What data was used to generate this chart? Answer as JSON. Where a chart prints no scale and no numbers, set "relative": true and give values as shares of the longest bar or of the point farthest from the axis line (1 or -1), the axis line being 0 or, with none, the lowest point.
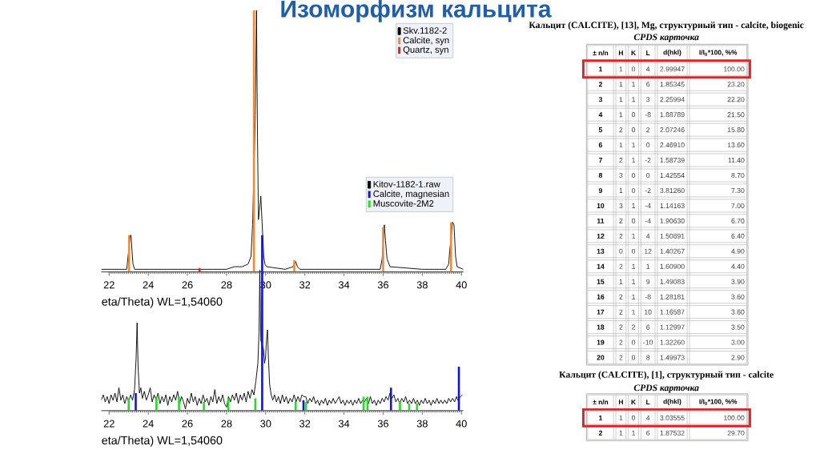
{
  "chart_data": [
    {
      "type": "line",
      "title": "Изоморфизм кальцита",
      "relative": true,
      "xlabel": "eta/Theta) WL=1,54060",
      "xlim": [
        21.6,
        40.1
      ],
      "xticks": [
        22,
        24,
        26,
        28,
        30,
        32,
        34,
        36,
        38,
        40
      ],
      "legend": "top right",
      "series": [
        {
          "name": "Skv.1182-2",
          "color": "#000000",
          "x": [
            21.6,
            22.9,
            23.08,
            23.12,
            23.17,
            23.22,
            23.3,
            24.0,
            25.0,
            26.0,
            27.0,
            27.5,
            28.0,
            28.4,
            28.8,
            29.1,
            29.25,
            29.33,
            29.47,
            29.53,
            29.58,
            29.63,
            29.7,
            29.75,
            29.9,
            29.96,
            30.05,
            31.0,
            31.4,
            31.53,
            31.62,
            31.75,
            33.0,
            35.0,
            35.85,
            35.95,
            36.06,
            36.12,
            36.2,
            36.35,
            38.0,
            39.2,
            39.35,
            39.4,
            39.55,
            39.62,
            39.7,
            39.78,
            40.1
          ],
          "values": [
            0.01,
            0.01,
            0.14,
            0.14,
            0.08,
            0.03,
            0.01,
            0.01,
            0.01,
            0.01,
            0.01,
            0.01,
            0.01,
            0.02,
            0.02,
            0.03,
            0.06,
            0.18,
            0.6,
            1.0,
            0.52,
            0.2,
            0.25,
            0.29,
            0.06,
            0.03,
            0.02,
            0.01,
            0.02,
            0.04,
            0.02,
            0.01,
            0.01,
            0.01,
            0.01,
            0.05,
            0.18,
            0.12,
            0.05,
            0.02,
            0.01,
            0.01,
            0.03,
            0.08,
            0.19,
            0.18,
            0.06,
            0.02,
            0.01
          ]
        },
        {
          "name": "Calcite, syn",
          "type": "bar",
          "color": "#f08a3c",
          "x": [
            23.02,
            29.4,
            31.46,
            36.0,
            39.47
          ],
          "values": [
            0.14,
            1.0,
            0.045,
            0.17,
            0.19
          ]
        },
        {
          "name": "Quartz, syn",
          "type": "bar",
          "color": "#e82020",
          "x": [
            26.62
          ],
          "values": [
            0.015
          ]
        }
      ]
    },
    {
      "type": "line",
      "relative": true,
      "xlabel": "eta/Theta) WL=1,54060",
      "xlim": [
        21.6,
        40.1
      ],
      "xticks": [
        22,
        24,
        26,
        28,
        30,
        32,
        34,
        36,
        38,
        40
      ],
      "legend": "top right",
      "series": [
        {
          "name": "Kitov-1182-1.raw",
          "color": "#000000",
          "x": [
            21.6,
            21.7,
            21.8,
            21.9,
            22.0,
            22.1,
            22.2,
            22.3,
            22.4,
            22.5,
            22.6,
            22.7,
            22.8,
            22.9,
            23.0,
            23.1,
            23.2,
            23.3,
            23.38,
            23.43,
            23.48,
            23.55,
            23.62,
            23.7,
            23.8,
            23.9,
            24.0,
            24.1,
            24.2,
            24.3,
            24.4,
            24.5,
            24.6,
            24.7,
            24.8,
            24.9,
            25.0,
            25.1,
            25.2,
            25.3,
            25.4,
            25.5,
            25.6,
            25.7,
            25.8,
            25.9,
            26.0,
            26.1,
            26.2,
            26.3,
            26.4,
            26.5,
            26.6,
            26.7,
            26.8,
            26.9,
            27.0,
            27.1,
            27.2,
            27.3,
            27.4,
            27.5,
            27.6,
            27.7,
            27.8,
            27.9,
            28.0,
            28.1,
            28.2,
            28.3,
            28.4,
            28.5,
            28.6,
            28.7,
            28.8,
            28.9,
            29.0,
            29.1,
            29.2,
            29.3,
            29.4,
            29.5,
            29.6,
            29.66,
            29.7,
            29.75,
            29.89,
            29.94,
            29.99,
            30.04,
            30.09,
            30.14,
            30.2,
            30.28,
            30.36,
            30.45,
            30.55,
            30.65,
            30.75,
            30.85,
            30.95,
            31.05,
            31.15,
            31.25,
            31.35,
            31.45,
            31.55,
            31.65,
            31.75,
            31.85,
            31.95,
            32.05,
            32.15,
            32.25,
            32.35,
            32.45,
            32.55,
            32.65,
            32.75,
            32.85,
            32.95,
            33.05,
            33.15,
            33.25,
            33.35,
            33.45,
            33.55,
            33.65,
            33.75,
            33.85,
            33.95,
            34.05,
            34.15,
            34.25,
            34.35,
            34.45,
            34.55,
            34.65,
            34.75,
            34.85,
            34.95,
            35.05,
            35.15,
            35.25,
            35.35,
            35.45,
            35.55,
            35.65,
            35.75,
            35.85,
            35.95,
            36.05,
            36.15,
            36.25,
            36.35,
            36.45,
            36.55,
            36.65,
            36.75,
            36.85,
            36.95,
            37.05,
            37.15,
            37.25,
            37.35,
            37.45,
            37.55,
            37.65,
            37.75,
            37.85,
            37.95,
            38.05,
            38.15,
            38.25,
            38.35,
            38.45,
            38.55,
            38.65,
            38.75,
            38.85,
            38.95,
            39.05,
            39.15,
            39.25,
            39.35,
            39.45,
            39.55,
            39.65,
            39.75,
            39.81,
            39.95,
            40.05
          ],
          "values": [
            0.06,
            0.09,
            0.05,
            0.08,
            0.04,
            0.09,
            0.06,
            0.1,
            0.05,
            0.13,
            0.06,
            0.09,
            0.04,
            0.08,
            0.05,
            0.09,
            0.06,
            0.12,
            0.3,
            0.5,
            0.25,
            0.1,
            0.13,
            0.07,
            0.11,
            0.06,
            0.09,
            0.13,
            0.05,
            0.09,
            0.06,
            0.1,
            0.04,
            0.08,
            0.05,
            0.09,
            0.03,
            0.08,
            0.05,
            0.09,
            0.06,
            0.11,
            0.04,
            0.08,
            0.05,
            0.01,
            0.07,
            0.04,
            0.1,
            0.05,
            0.08,
            0.03,
            0.07,
            0.04,
            0.09,
            0.05,
            0.07,
            0.03,
            0.08,
            0.05,
            0.12,
            0.04,
            0.08,
            0.05,
            0.09,
            0.04,
            0.02,
            0.08,
            0.05,
            0.09,
            0.06,
            0.1,
            0.04,
            0.09,
            0.06,
            0.1,
            0.05,
            0.11,
            0.07,
            0.12,
            0.09,
            0.17,
            0.27,
            0.45,
            0.8,
            0.4,
            0.35,
            0.27,
            0.3,
            0.4,
            0.46,
            0.3,
            0.15,
            0.09,
            0.06,
            0.09,
            0.05,
            0.08,
            0.04,
            0.09,
            0.05,
            0.08,
            0.04,
            0.07,
            0.05,
            0.09,
            0.05,
            0.08,
            0.05,
            0.09,
            0.08,
            0.08,
            0.04,
            0.07,
            0.05,
            0.08,
            0.04,
            0.06,
            0.03,
            0.06,
            0.04,
            0.07,
            0.03,
            0.06,
            0.04,
            0.07,
            0.04,
            0.06,
            0.08,
            0.04,
            0.06,
            0.03,
            0.06,
            0.04,
            0.06,
            0.03,
            0.06,
            0.04,
            0.07,
            0.04,
            0.06,
            0.05,
            0.07,
            0.04,
            0.08,
            0.04,
            0.06,
            0.03,
            0.06,
            0.04,
            0.07,
            0.05,
            0.08,
            0.06,
            0.1,
            0.07,
            0.09,
            0.05,
            0.07,
            0.04,
            0.07,
            0.05,
            0.08,
            0.04,
            0.06,
            0.04,
            0.07,
            0.04,
            0.06,
            0.03,
            0.06,
            0.04,
            0.07,
            0.04,
            0.06,
            0.03,
            0.06,
            0.04,
            0.07,
            0.04,
            0.06,
            0.04,
            0.06,
            0.04,
            0.07,
            0.05,
            0.07,
            0.05,
            0.08,
            0.06,
            0.08,
            0.09
          ]
        },
        {
          "name": "Calcite, magnesian",
          "type": "bar",
          "color": "#1414d2",
          "x": [
            23.36,
            29.82,
            31.93,
            36.4,
            39.87
          ],
          "values": [
            0.1,
            1.0,
            0.06,
            0.13,
            0.25
          ]
        },
        {
          "name": "Muscovite-2M2",
          "type": "bar",
          "color": "#22dd22",
          "x": [
            23.0,
            24.42,
            25.57,
            26.84,
            28.09,
            29.47,
            31.53,
            32.05,
            35.0,
            35.2,
            36.86,
            37.33,
            37.73
          ],
          "values": [
            0.07,
            0.08,
            0.08,
            0.05,
            0.07,
            0.07,
            0.05,
            0.05,
            0.08,
            0.08,
            0.05,
            0.04,
            0.04
          ]
        }
      ]
    },
    {
      "type": "heatmap",
      "title": "Кальцит (CALCITE), [13], Mg, структурный тип - calcite, biogenic",
      "subtitle": "CPDS карточка",
      "ylabel": "± n/n",
      "categories": [
        "H",
        "K",
        "L",
        "d(hkl)",
        "I/I$_{0}$*100, %%"
      ],
      "y_categories": [
        "1",
        "2",
        "3",
        "4",
        "5",
        "6",
        "7",
        "8",
        "9",
        "10",
        "11",
        "12",
        "13",
        "14",
        "15",
        "16",
        "17",
        "18",
        "19",
        "20"
      ],
      "cells": [
        [
          null,
          null,
          null,
          null,
          null
        ],
        [
          null,
          null,
          null,
          null,
          null
        ],
        [
          null,
          null,
          null,
          null,
          null
        ],
        [
          null,
          null,
          null,
          null,
          null
        ],
        [
          null,
          null,
          null,
          null,
          null
        ],
        [
          null,
          null,
          null,
          null,
          null
        ],
        [
          null,
          null,
          null,
          null,
          null
        ],
        [
          null,
          null,
          null,
          null,
          null
        ],
        [
          null,
          null,
          null,
          null,
          null
        ],
        [
          null,
          null,
          null,
          null,
          null
        ],
        [
          null,
          null,
          null,
          null,
          null
        ],
        [
          null,
          null,
          null,
          null,
          null
        ],
        [
          null,
          null,
          null,
          null,
          null
        ],
        [
          null,
          null,
          null,
          null,
          null
        ],
        [
          null,
          null,
          null,
          null,
          null
        ],
        [
          null,
          null,
          null,
          null,
          null
        ],
        [
          null,
          null,
          null,
          null,
          null
        ],
        [
          null,
          null,
          null,
          null,
          null
        ],
        [
          null,
          null,
          null,
          null,
          null
        ],
        [
          null,
          null,
          null,
          null,
          null
        ]
      ],
      "cell_labels": [
        [
          "1",
          "0",
          "4",
          "2.99947",
          "100.00"
        ],
        [
          "1",
          "1",
          "6",
          "1.85345",
          "23.20"
        ],
        [
          "1",
          "1",
          "3",
          "2.25994",
          "22.20"
        ],
        [
          "1",
          "0",
          "-8",
          "1.88789",
          "21.50"
        ],
        [
          "2",
          "0",
          "2",
          "2.07246",
          "15.80"
        ],
        [
          "1",
          "1",
          "0",
          "2.46910",
          "13.60"
        ],
        [
          "2",
          "1",
          "-2",
          "1.58739",
          "11.40"
        ],
        [
          "3",
          "0",
          "0",
          "1.42554",
          "8.70"
        ],
        [
          "1",
          "0",
          "-2",
          "3.81260",
          "7.30"
        ],
        [
          "3",
          "1",
          "-4",
          "1.14163",
          "7.00"
        ],
        [
          "2",
          "0",
          "-4",
          "1.90630",
          "6.70"
        ],
        [
          "2",
          "1",
          "4",
          "1.50891",
          "6.40"
        ],
        [
          "0",
          "0",
          "12",
          "1.40267",
          "4.90"
        ],
        [
          "2",
          "1",
          "1",
          "1.60900",
          "4.40"
        ],
        [
          "1",
          "1",
          "9",
          "1.49083",
          "3.90"
        ],
        [
          "2",
          "1",
          "-8",
          "1.28181",
          "3.60"
        ],
        [
          "2",
          "1",
          "10",
          "1.16587",
          "3.60"
        ],
        [
          "2",
          "2",
          "6",
          "1.12997",
          "3.50"
        ],
        [
          "2",
          "0",
          "-10",
          "1.32260",
          "3.00"
        ],
        [
          "2",
          "0",
          "8",
          "1.49973",
          "2.90"
        ]
      ]
    },
    {
      "type": "heatmap",
      "title": "Кальцит (CALCITE), [1], структурный тип - calcite",
      "subtitle": "CPDS карточка",
      "ylabel": "± n/n",
      "categories": [
        "H",
        "K",
        "L",
        "d(hkl)",
        "I/I$_{0}$*100, %%"
      ],
      "y_categories": [
        "1",
        "2"
      ],
      "cells": [
        [
          null,
          null,
          null,
          null,
          null
        ],
        [
          null,
          null,
          null,
          null,
          null
        ]
      ],
      "cell_labels": [
        [
          "1",
          "0",
          "4",
          "3.03555",
          "100.00"
        ],
        [
          "1",
          "1",
          "6",
          "1.87532",
          "29.70"
        ]
      ]
    }
  ]
}
